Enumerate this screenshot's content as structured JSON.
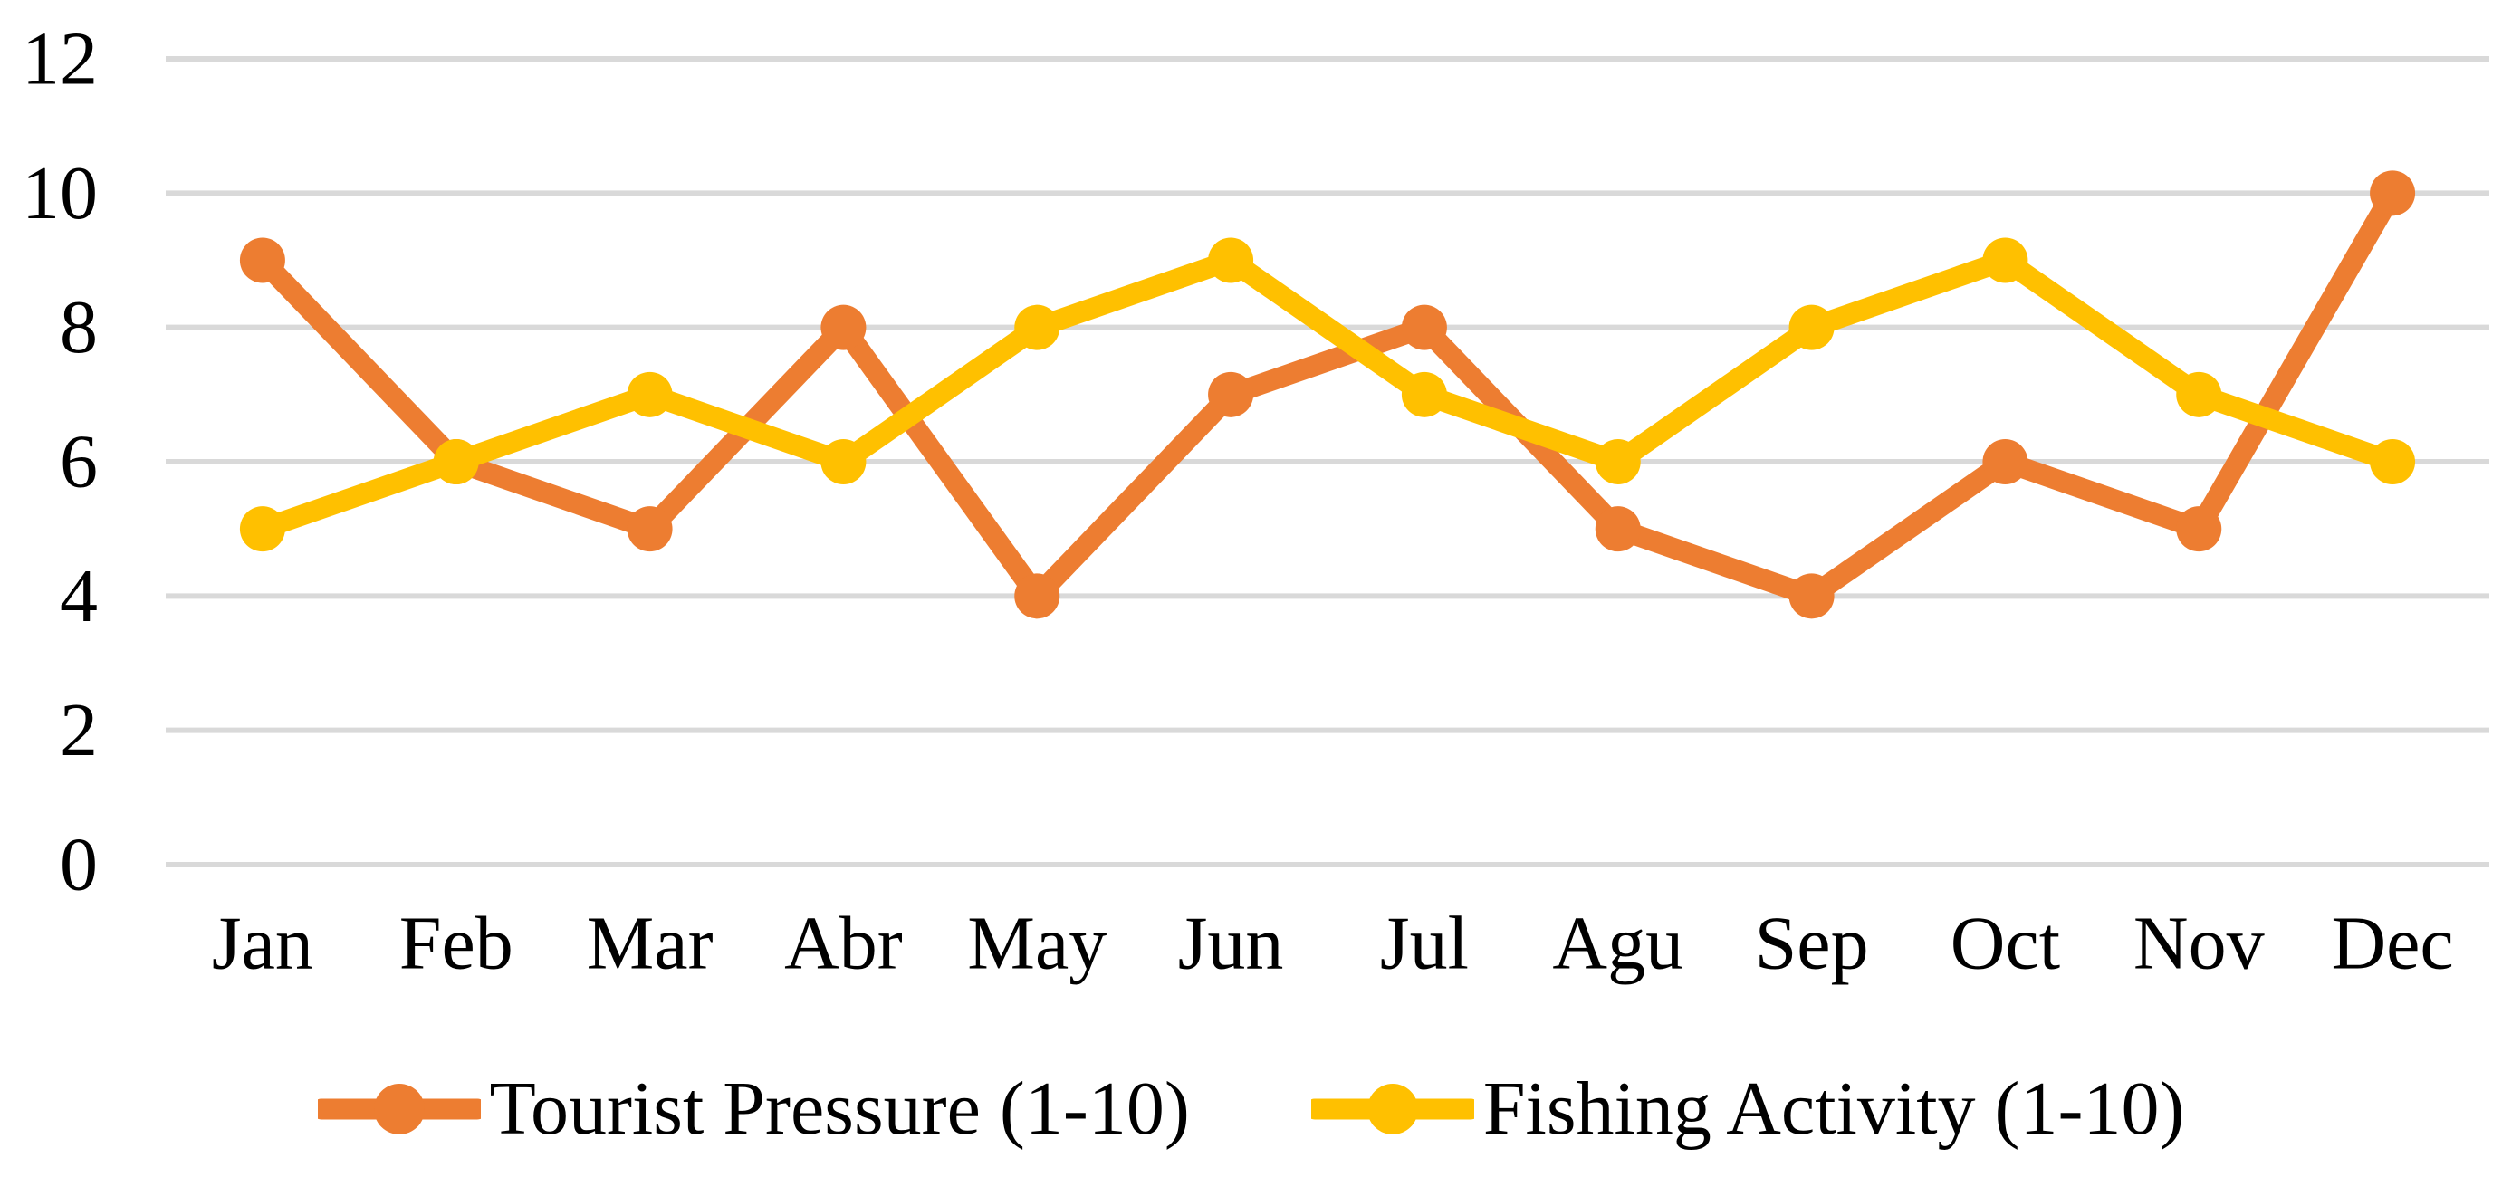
{
  "chart_data": {
    "type": "line",
    "title": "",
    "xlabel": "",
    "ylabel": "",
    "categories": [
      "Jan",
      "Feb",
      "Mar",
      "Abr",
      "May",
      "Jun",
      "Jul",
      "Agu",
      "Sep",
      "Oct",
      "Nov",
      "Dec"
    ],
    "series": [
      {
        "name": "Tourist Pressure (1-10)",
        "color": "#ED7D31",
        "values": [
          9,
          6,
          5,
          8,
          4,
          7,
          8,
          5,
          4,
          6,
          5,
          10
        ]
      },
      {
        "name": "Fishing Activity (1-10)",
        "color": "#FFC000",
        "values": [
          5,
          6,
          7,
          6,
          8,
          9,
          7,
          6,
          8,
          9,
          7,
          6
        ]
      }
    ],
    "ylim": [
      0,
      12
    ],
    "yticks": [
      0,
      2,
      4,
      6,
      8,
      10,
      12
    ],
    "ytick_labels": [
      "0",
      "2",
      "4",
      "6",
      "8",
      "10",
      "12"
    ],
    "grid": true,
    "grid_color": "#D9D9D9",
    "text_color": "#000000",
    "background_color": "#FFFFFF",
    "legend_position": "bottom",
    "marker_style": "circle"
  }
}
